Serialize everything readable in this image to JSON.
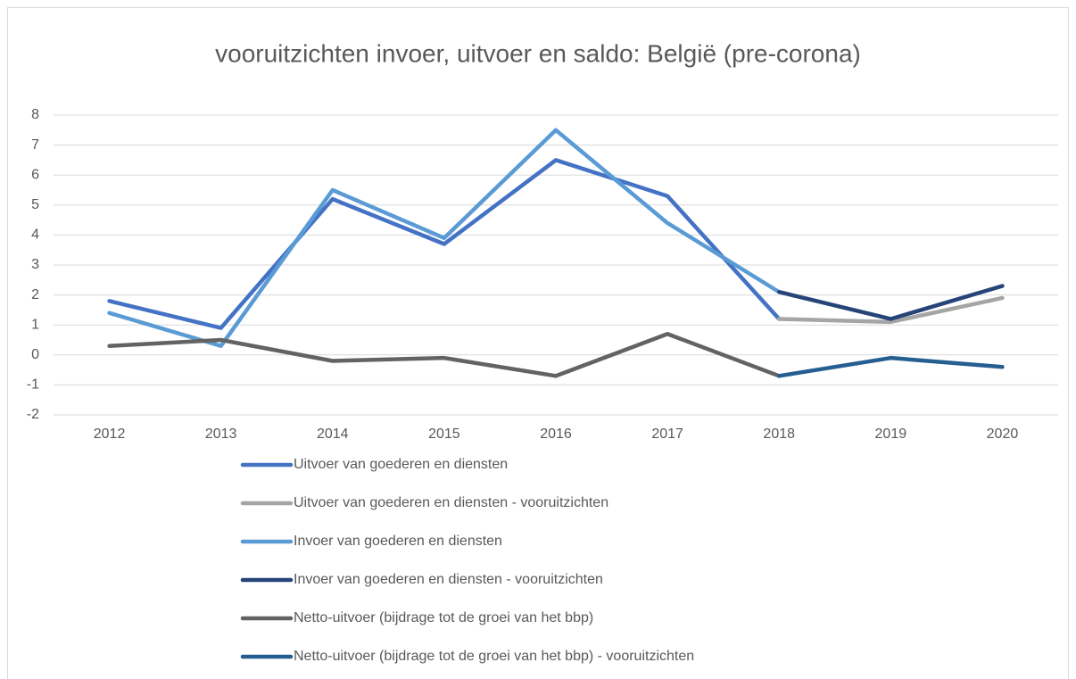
{
  "chart_data": {
    "type": "line",
    "title": "vooruitzichten invoer, uitvoer en saldo: België (pre-corona)",
    "categories": [
      "2012",
      "2013",
      "2014",
      "2015",
      "2016",
      "2017",
      "2018",
      "2019",
      "2020"
    ],
    "series": [
      {
        "name": "Uitvoer van goederen en diensten",
        "color": "#4472c4",
        "values": [
          1.8,
          0.9,
          5.2,
          3.7,
          6.5,
          5.3,
          1.2,
          null,
          null
        ]
      },
      {
        "name": "Uitvoer van goederen en diensten - vooruitzichten",
        "color": "#a5a5a5",
        "values": [
          null,
          null,
          null,
          null,
          null,
          null,
          1.2,
          1.1,
          1.9
        ]
      },
      {
        "name": "Invoer van goederen en diensten",
        "color": "#5b9bd5",
        "values": [
          1.4,
          0.3,
          5.5,
          3.9,
          7.5,
          4.4,
          2.1,
          null,
          null
        ]
      },
      {
        "name": "Invoer van goederen en diensten - vooruitzichten",
        "color": "#264478",
        "values": [
          null,
          null,
          null,
          null,
          null,
          null,
          2.1,
          1.2,
          2.3
        ]
      },
      {
        "name": "Netto-uitvoer (bijdrage tot de groei van het bbp)",
        "color": "#636363",
        "values": [
          0.3,
          0.5,
          -0.2,
          -0.1,
          -0.7,
          0.7,
          -0.7,
          null,
          null
        ]
      },
      {
        "name": "Netto-uitvoer (bijdrage tot de groei van het bbp) - vooruitzichten",
        "color": "#255e91",
        "values": [
          null,
          null,
          null,
          null,
          null,
          null,
          -0.7,
          -0.1,
          -0.4
        ]
      }
    ],
    "ylim": [
      -2,
      8
    ],
    "yticks": [
      -2,
      -1,
      0,
      1,
      2,
      3,
      4,
      5,
      6,
      7,
      8
    ],
    "grid": true,
    "legend": "bottom"
  }
}
